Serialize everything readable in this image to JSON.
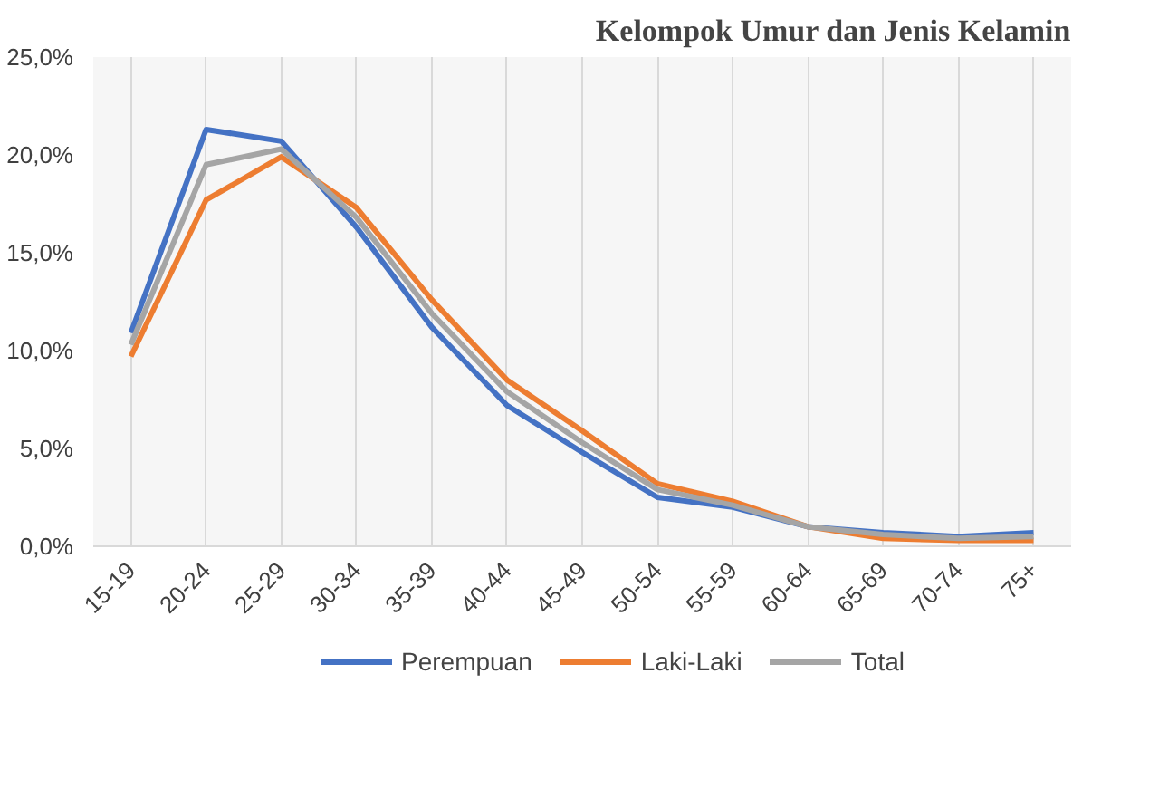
{
  "chart_data": {
    "type": "line",
    "title": "Kelompok Umur dan Jenis Kelamin",
    "categories": [
      "15-19",
      "20-24",
      "25-29",
      "30-34",
      "35-39",
      "40-44",
      "45-49",
      "50-54",
      "55-59",
      "60-64",
      "65-69",
      "70-74",
      "75+"
    ],
    "series": [
      {
        "name": "Perempuan",
        "color": "#4472c4",
        "values": [
          10.9,
          21.3,
          20.7,
          16.3,
          11.2,
          7.2,
          4.8,
          2.5,
          2.0,
          1.0,
          0.7,
          0.5,
          0.7
        ]
      },
      {
        "name": "Laki-Laki",
        "color": "#ed7d31",
        "values": [
          9.7,
          17.7,
          19.9,
          17.3,
          12.6,
          8.5,
          5.9,
          3.2,
          2.3,
          1.0,
          0.4,
          0.3,
          0.3
        ]
      },
      {
        "name": "Total",
        "color": "#a5a5a5",
        "values": [
          10.3,
          19.5,
          20.3,
          16.8,
          11.9,
          7.9,
          5.3,
          2.9,
          2.1,
          1.0,
          0.6,
          0.4,
          0.5
        ]
      }
    ],
    "ylim": [
      0,
      25
    ],
    "yticks": [
      {
        "value": 0,
        "label": "0,0%"
      },
      {
        "value": 5,
        "label": "5,0%"
      },
      {
        "value": 10,
        "label": "10,0%"
      },
      {
        "value": 15,
        "label": "15,0%"
      },
      {
        "value": 20,
        "label": "20,0%"
      },
      {
        "value": 25,
        "label": "25,0%"
      }
    ],
    "grid": "x",
    "legend": "bottom",
    "marker": "none",
    "line_style": "solid"
  }
}
